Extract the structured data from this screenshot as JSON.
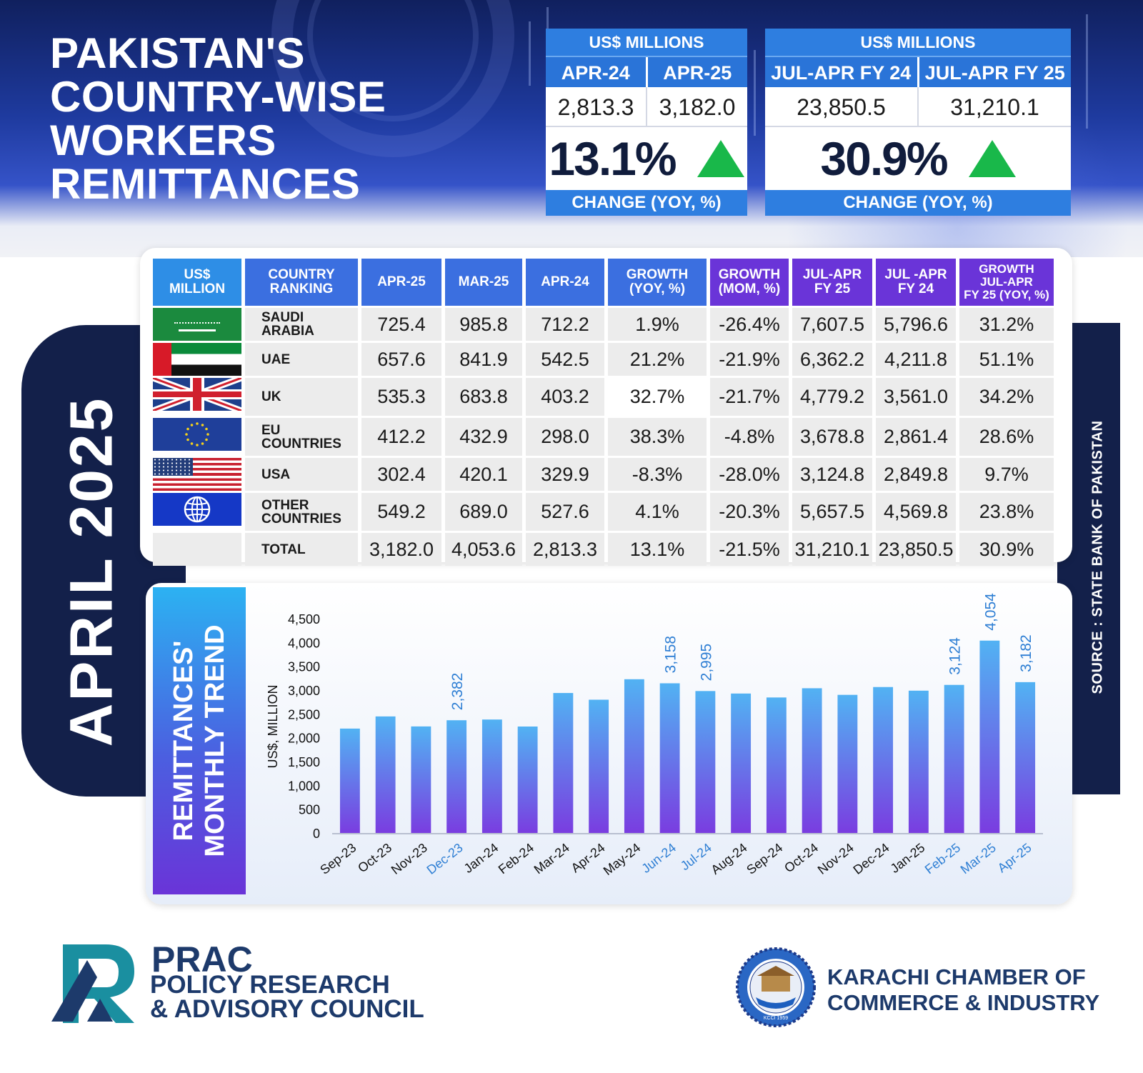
{
  "header": {
    "title_lines": [
      "PAKISTAN'S",
      "COUNTRY-WISE",
      "WORKERS",
      "REMITTANCES"
    ]
  },
  "kpi_monthly": {
    "caption": "US$ MILLIONS",
    "col1_label": "APR-24",
    "col2_label": "APR-25",
    "col1_value": "2,813.3",
    "col2_value": "3,182.0",
    "change": "13.1%",
    "footer": "CHANGE (YOY, %)",
    "trend_color": "#19b84a"
  },
  "kpi_ytd": {
    "caption": "US$ MILLIONS",
    "col1_label": "JUL-APR FY 24",
    "col2_label": "JUL-APR FY 25",
    "col1_value": "23,850.5",
    "col2_value": "31,210.1",
    "change": "30.9%",
    "footer": "CHANGE (YOY, %)",
    "trend_color": "#19b84a"
  },
  "side": {
    "month_label": "APRIL  2025",
    "source": "SOURCE : STATE BANK OF PAKISTAN"
  },
  "table": {
    "headers": {
      "unit": [
        "US$",
        "MILLION"
      ],
      "country": [
        "COUNTRY",
        "RANKING"
      ],
      "apr25": "APR-25",
      "mar25": "MAR-25",
      "apr24": "APR-24",
      "yoy": [
        "GROWTH",
        "(YOY, %)"
      ],
      "mom": [
        "GROWTH",
        "(MOM, %)"
      ],
      "fy25": [
        "JUL-APR",
        "FY 25"
      ],
      "fy24": [
        "JUL -APR",
        "FY 24"
      ],
      "fy_growth": [
        "GROWTH",
        "JUL-APR",
        "FY 25 (YOY, %)"
      ]
    },
    "rows": [
      {
        "flag": "saudi-arabia-flag",
        "country": [
          "SAUDI",
          "ARABIA"
        ],
        "apr25": "725.4",
        "mar25": "985.8",
        "apr24": "712.2",
        "yoy": "1.9%",
        "mom": "-26.4%",
        "fy25": "7,607.5",
        "fy24": "5,796.6",
        "fy_growth": "31.2%"
      },
      {
        "flag": "uae-flag",
        "country": [
          "UAE"
        ],
        "apr25": "657.6",
        "mar25": "841.9",
        "apr24": "542.5",
        "yoy": "21.2%",
        "mom": "-21.9%",
        "fy25": "6,362.2",
        "fy24": "4,211.8",
        "fy_growth": "51.1%"
      },
      {
        "flag": "uk-flag",
        "country": [
          "UK"
        ],
        "apr25": "535.3",
        "mar25": "683.8",
        "apr24": "403.2",
        "yoy": "32.7%",
        "mom": "-21.7%",
        "fy25": "4,779.2",
        "fy24": "3,561.0",
        "fy_growth": "34.2%"
      },
      {
        "flag": "eu-flag",
        "country": [
          "EU",
          "COUNTRIES"
        ],
        "apr25": "412.2",
        "mar25": "432.9",
        "apr24": "298.0",
        "yoy": "38.3%",
        "mom": "-4.8%",
        "fy25": "3,678.8",
        "fy24": "2,861.4",
        "fy_growth": "28.6%"
      },
      {
        "flag": "usa-flag",
        "country": [
          "USA"
        ],
        "apr25": "302.4",
        "mar25": "420.1",
        "apr24": "329.9",
        "yoy": "-8.3%",
        "mom": "-28.0%",
        "fy25": "3,124.8",
        "fy24": "2,849.8",
        "fy_growth": "9.7%"
      },
      {
        "flag": "globe-flag",
        "country": [
          "OTHER",
          "COUNTRIES"
        ],
        "apr25": "549.2",
        "mar25": "689.0",
        "apr24": "527.6",
        "yoy": "4.1%",
        "mom": "-20.3%",
        "fy25": "5,657.5",
        "fy24": "4,569.8",
        "fy_growth": "23.8%"
      },
      {
        "flag": "",
        "country": [
          "TOTAL"
        ],
        "apr25": "3,182.0",
        "mar25": "4,053.6",
        "apr24": "2,813.3",
        "yoy": "13.1%",
        "mom": "-21.5%",
        "fy25": "31,210.1",
        "fy24": "23,850.5",
        "fy_growth": "30.9%"
      }
    ]
  },
  "chart_title": [
    "REMITTANCES'",
    "MONTHLY TREND"
  ],
  "chart_data": {
    "type": "bar",
    "ylabel": "US$, MILLION",
    "ylim": [
      0,
      4500
    ],
    "yticks": [
      "0",
      "500",
      "1,000",
      "1,500",
      "2,000",
      "2,500",
      "3,000",
      "3,500",
      "4,000",
      "4,500"
    ],
    "categories": [
      "Sep-23",
      "Oct-23",
      "Nov-23",
      "Dec-23",
      "Jan-24",
      "Feb-24",
      "Mar-24",
      "Apr-24",
      "May-24",
      "Jun-24",
      "Jul-24",
      "Aug-24",
      "Sep-24",
      "Oct-24",
      "Nov-24",
      "Dec-24",
      "Jan-25",
      "Feb-25",
      "Mar-25",
      "Apr-25"
    ],
    "values": [
      2207,
      2462,
      2252,
      2382,
      2397,
      2250,
      2954,
      2813,
      3243,
      3158,
      2995,
      2943,
      2860,
      3054,
      2915,
      3079,
      3003,
      3124,
      4054,
      3182
    ],
    "highlighted": [
      "Dec-23",
      "Jun-24",
      "Jul-24",
      "Feb-25",
      "Mar-25",
      "Apr-25"
    ],
    "data_labels": {
      "Dec-23": "2,382",
      "Jun-24": "3,158",
      "Jul-24": "2,995",
      "Feb-25": "3,124",
      "Mar-25": "4,054",
      "Apr-25": "3,182"
    },
    "grid": false,
    "legend": "none",
    "bar_gradient": [
      "#52b2f3",
      "#7a3ce0"
    ],
    "highlight_color": "#2f7fd4"
  },
  "footer": {
    "prac_name": "PRAC",
    "prac_full": [
      "POLICY RESEARCH",
      "& ADVISORY COUNCIL"
    ],
    "kcci_name": [
      "KARACHI CHAMBER OF",
      "COMMERCE & INDUSTRY"
    ],
    "kcci_seal_text": "KARACHI CHAMBER OF COMMERCE & INDUSTRY",
    "kcci_seal_year": "KCCI 1959"
  }
}
